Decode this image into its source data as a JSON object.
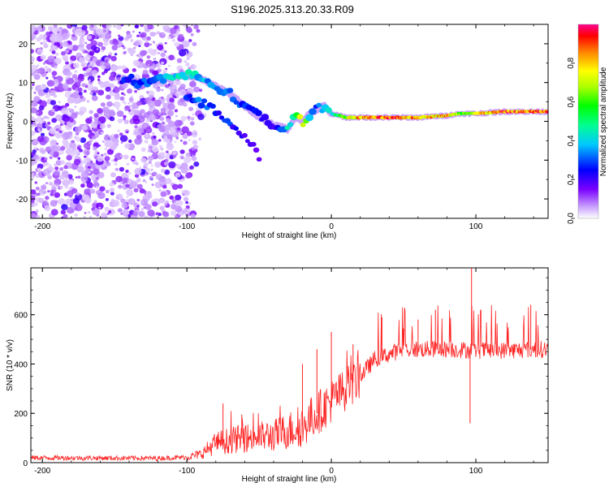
{
  "title": "S196.2025.313.20.33.R09",
  "chart_data": [
    {
      "type": "heatmap",
      "xlabel": "Height of straight line (km)",
      "ylabel": "Frequency (Hz)",
      "xlim": [
        -208,
        150
      ],
      "ylim": [
        -25,
        25
      ],
      "xticks": [
        -200,
        -100,
        0,
        100
      ],
      "xtick_labels": [
        "-200",
        "-100",
        "0",
        "100"
      ],
      "yticks": [
        -20,
        -10,
        0,
        10,
        20
      ],
      "ytick_labels": [
        "-20",
        "-10",
        "0",
        "10",
        "20"
      ],
      "colorbar": {
        "label": "Normalized spectral amplitude",
        "range": [
          0,
          1
        ],
        "ticks": [
          0.0,
          0.2,
          0.4,
          0.6,
          0.8
        ],
        "tick_labels": [
          "0.0",
          "0.2",
          "0.4",
          "0.6",
          "0.8"
        ]
      },
      "ridge": {
        "x": [
          -145,
          -130,
          -115,
          -100,
          -90,
          -80,
          -70,
          -60,
          -50,
          -40,
          -30,
          -25,
          -20,
          -15,
          -10,
          -5,
          0,
          10,
          20,
          40,
          60,
          80,
          90,
          100,
          120,
          150
        ],
        "freq": [
          11,
          10,
          11,
          12,
          11,
          9,
          7,
          4,
          1,
          -1,
          -2,
          1,
          0,
          2,
          3,
          4,
          2,
          1,
          1,
          1,
          1,
          1.5,
          2,
          2,
          2.5,
          2.5
        ],
        "amplitude": [
          0.25,
          0.3,
          0.4,
          0.45,
          0.4,
          0.35,
          0.3,
          0.3,
          0.25,
          0.2,
          0.45,
          0.5,
          0.8,
          0.4,
          0.3,
          0.35,
          0.45,
          0.7,
          0.85,
          0.9,
          0.85,
          0.85,
          0.65,
          0.8,
          0.9,
          0.9
        ]
      },
      "lower_branch": {
        "x": [
          -100,
          -90,
          -80,
          -70,
          -60,
          -55,
          -50
        ],
        "freq": [
          6,
          5,
          3,
          0,
          -4,
          -6,
          -9
        ],
        "amplitude": [
          0.3,
          0.3,
          0.25,
          0.25,
          0.2,
          0.2,
          0.15
        ]
      }
    },
    {
      "type": "line",
      "xlabel": "Height of straight line (km)",
      "ylabel": "SNR (10 * v/v)",
      "xlim": [
        -208,
        150
      ],
      "ylim": [
        0,
        790
      ],
      "xticks": [
        -200,
        -100,
        0,
        100
      ],
      "xtick_labels": [
        "-200",
        "-100",
        "0",
        "100"
      ],
      "yticks": [
        0,
        200,
        400,
        600
      ],
      "ytick_labels": [
        "0",
        "200",
        "400",
        "600"
      ],
      "color": "#ff2222",
      "trend": {
        "x": [
          -208,
          -120,
          -100,
          -90,
          -80,
          -60,
          -40,
          -20,
          -10,
          0,
          10,
          20,
          30,
          50,
          80,
          100,
          120,
          150
        ],
        "y": [
          20,
          18,
          22,
          35,
          80,
          100,
          110,
          150,
          200,
          250,
          300,
          350,
          420,
          460,
          460,
          455,
          455,
          460
        ]
      },
      "spikes": [
        {
          "x": 97,
          "y": 790
        },
        {
          "x": 96,
          "y": 160
        },
        {
          "x": 0,
          "y": 530
        },
        {
          "x": -20,
          "y": 400
        },
        {
          "x": -10,
          "y": 460
        },
        {
          "x": -75,
          "y": 240
        },
        {
          "x": -62,
          "y": 195
        },
        {
          "x": 15,
          "y": 480
        },
        {
          "x": 35,
          "y": 590
        },
        {
          "x": 60,
          "y": 580
        },
        {
          "x": 72,
          "y": 620
        },
        {
          "x": 138,
          "y": 640
        }
      ]
    }
  ]
}
